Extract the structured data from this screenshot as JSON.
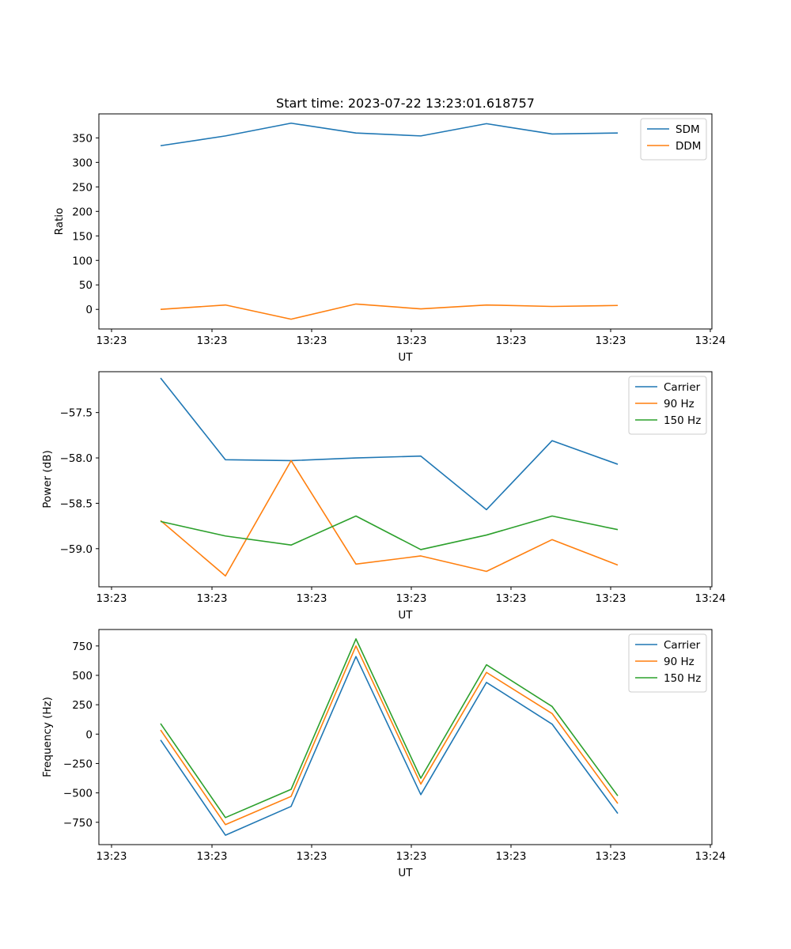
{
  "chart_data": [
    {
      "type": "line",
      "title": "Start time: 2023-07-22 13:23:01.618757",
      "xlabel": "UT",
      "ylabel": "Ratio",
      "x_tick_labels": [
        "13:23",
        "13:23",
        "13:23",
        "13:23",
        "13:23",
        "13:23",
        "13:24"
      ],
      "yticks": [
        0,
        50,
        100,
        150,
        200,
        250,
        300,
        350
      ],
      "ytick_labels": [
        "0",
        "50",
        "100",
        "150",
        "200",
        "250",
        "300",
        "350"
      ],
      "ylim": [
        -40,
        399
      ],
      "grid": false,
      "legend_position": "upper right",
      "series": [
        {
          "name": "SDM",
          "color": "#1f77b4",
          "values": [
            334,
            354,
            380,
            360,
            354,
            379,
            358,
            360
          ]
        },
        {
          "name": "DDM",
          "color": "#ff7f0e",
          "values": [
            0,
            9,
            -20,
            11,
            1,
            9,
            6,
            8
          ]
        }
      ]
    },
    {
      "type": "line",
      "title": "",
      "xlabel": "UT",
      "ylabel": "Power (dB)",
      "x_tick_labels": [
        "13:23",
        "13:23",
        "13:23",
        "13:23",
        "13:23",
        "13:23",
        "13:24"
      ],
      "yticks": [
        -59.0,
        -58.5,
        -58.0,
        -57.5
      ],
      "ytick_labels": [
        "−59.0",
        "−58.5",
        "−58.0",
        "−57.5"
      ],
      "ylim": [
        -59.42,
        -57.05
      ],
      "grid": false,
      "legend_position": "upper right",
      "series": [
        {
          "name": "Carrier",
          "color": "#1f77b4",
          "values": [
            -57.12,
            -58.02,
            -58.03,
            -58.0,
            -57.98,
            -58.57,
            -57.81,
            -58.07
          ]
        },
        {
          "name": "90 Hz",
          "color": "#ff7f0e",
          "values": [
            -58.69,
            -59.3,
            -58.03,
            -59.17,
            -59.08,
            -59.25,
            -58.9,
            -59.18
          ]
        },
        {
          "name": "150 Hz",
          "color": "#2ca02c",
          "values": [
            -58.7,
            -58.86,
            -58.96,
            -58.64,
            -59.01,
            -58.85,
            -58.64,
            -58.79
          ]
        }
      ]
    },
    {
      "type": "line",
      "title": "",
      "xlabel": "UT",
      "ylabel": "Frequency (Hz)",
      "x_tick_labels": [
        "13:23",
        "13:23",
        "13:23",
        "13:23",
        "13:23",
        "13:23",
        "13:24"
      ],
      "yticks": [
        -750,
        -500,
        -250,
        0,
        250,
        500,
        750
      ],
      "ytick_labels": [
        "−750",
        "−500",
        "−250",
        "0",
        "250",
        "500",
        "750"
      ],
      "ylim": [
        -940,
        890
      ],
      "grid": false,
      "legend_position": "upper right",
      "series": [
        {
          "name": "Carrier",
          "color": "#1f77b4",
          "values": [
            -50,
            -860,
            -615,
            660,
            -515,
            440,
            85,
            -675
          ]
        },
        {
          "name": "90 Hz",
          "color": "#ff7f0e",
          "values": [
            35,
            -770,
            -530,
            750,
            -425,
            525,
            175,
            -590
          ]
        },
        {
          "name": "150 Hz",
          "color": "#2ca02c",
          "values": [
            90,
            -710,
            -470,
            810,
            -375,
            590,
            235,
            -525
          ]
        }
      ]
    }
  ]
}
